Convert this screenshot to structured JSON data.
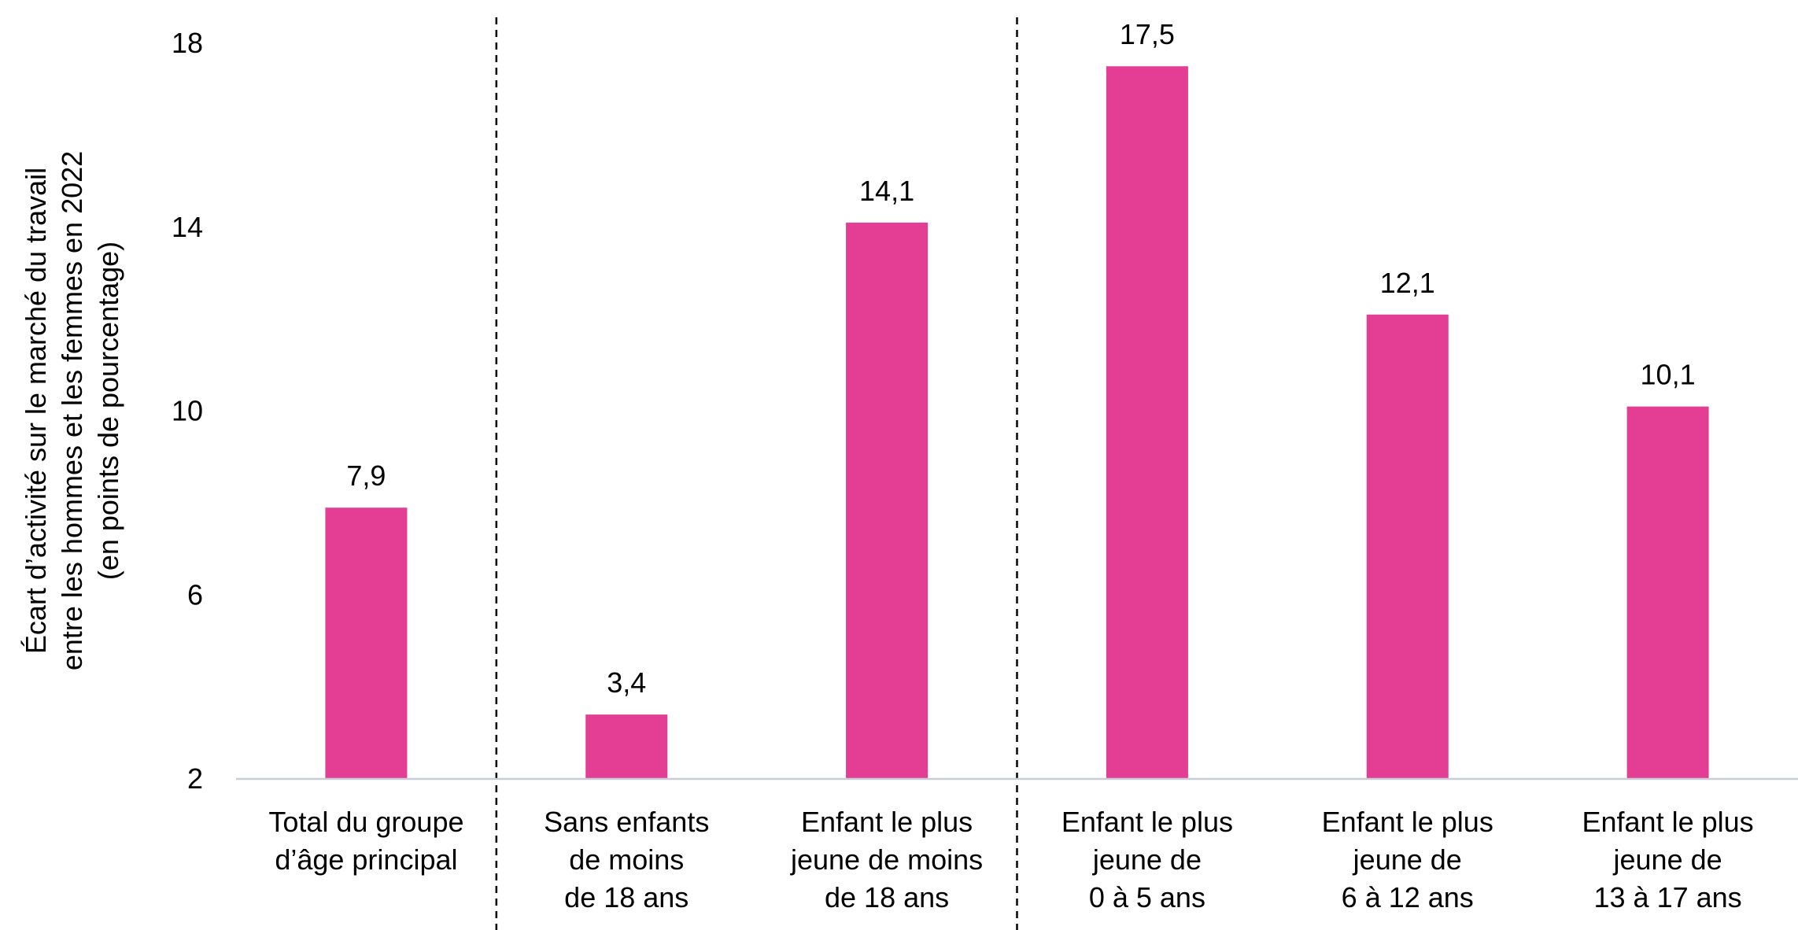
{
  "chart_data": {
    "type": "bar",
    "title": "",
    "ylabel_lines": [
      "Écart d’activité sur le marché du travail",
      "entre les hommes et les femmes en 2022",
      "(en points de pourcentage)"
    ],
    "ylim": [
      2,
      18
    ],
    "yticks": [
      2,
      6,
      10,
      14,
      18
    ],
    "grid": false,
    "legend": "none",
    "group_separators_after": [
      0,
      2
    ],
    "categories": [
      [
        "Total du groupe",
        "d’âge principal"
      ],
      [
        "Sans enfants",
        "de moins",
        "de 18 ans"
      ],
      [
        "Enfant le plus",
        "jeune de moins",
        "de 18 ans"
      ],
      [
        "Enfant le plus",
        "jeune de",
        "0 à 5 ans"
      ],
      [
        "Enfant le plus",
        "jeune de",
        "6 à 12 ans"
      ],
      [
        "Enfant le plus",
        "jeune de",
        "13 à 17 ans"
      ]
    ],
    "values": [
      7.9,
      3.4,
      14.1,
      17.5,
      12.1,
      10.1
    ],
    "value_labels": [
      "7,9",
      "3,4",
      "14,1",
      "17,5",
      "12,1",
      "10,1"
    ]
  },
  "colors": {
    "bar": "#E33D94",
    "axis": "#C8CDD6",
    "separator": "#000000",
    "text": "#000000"
  }
}
